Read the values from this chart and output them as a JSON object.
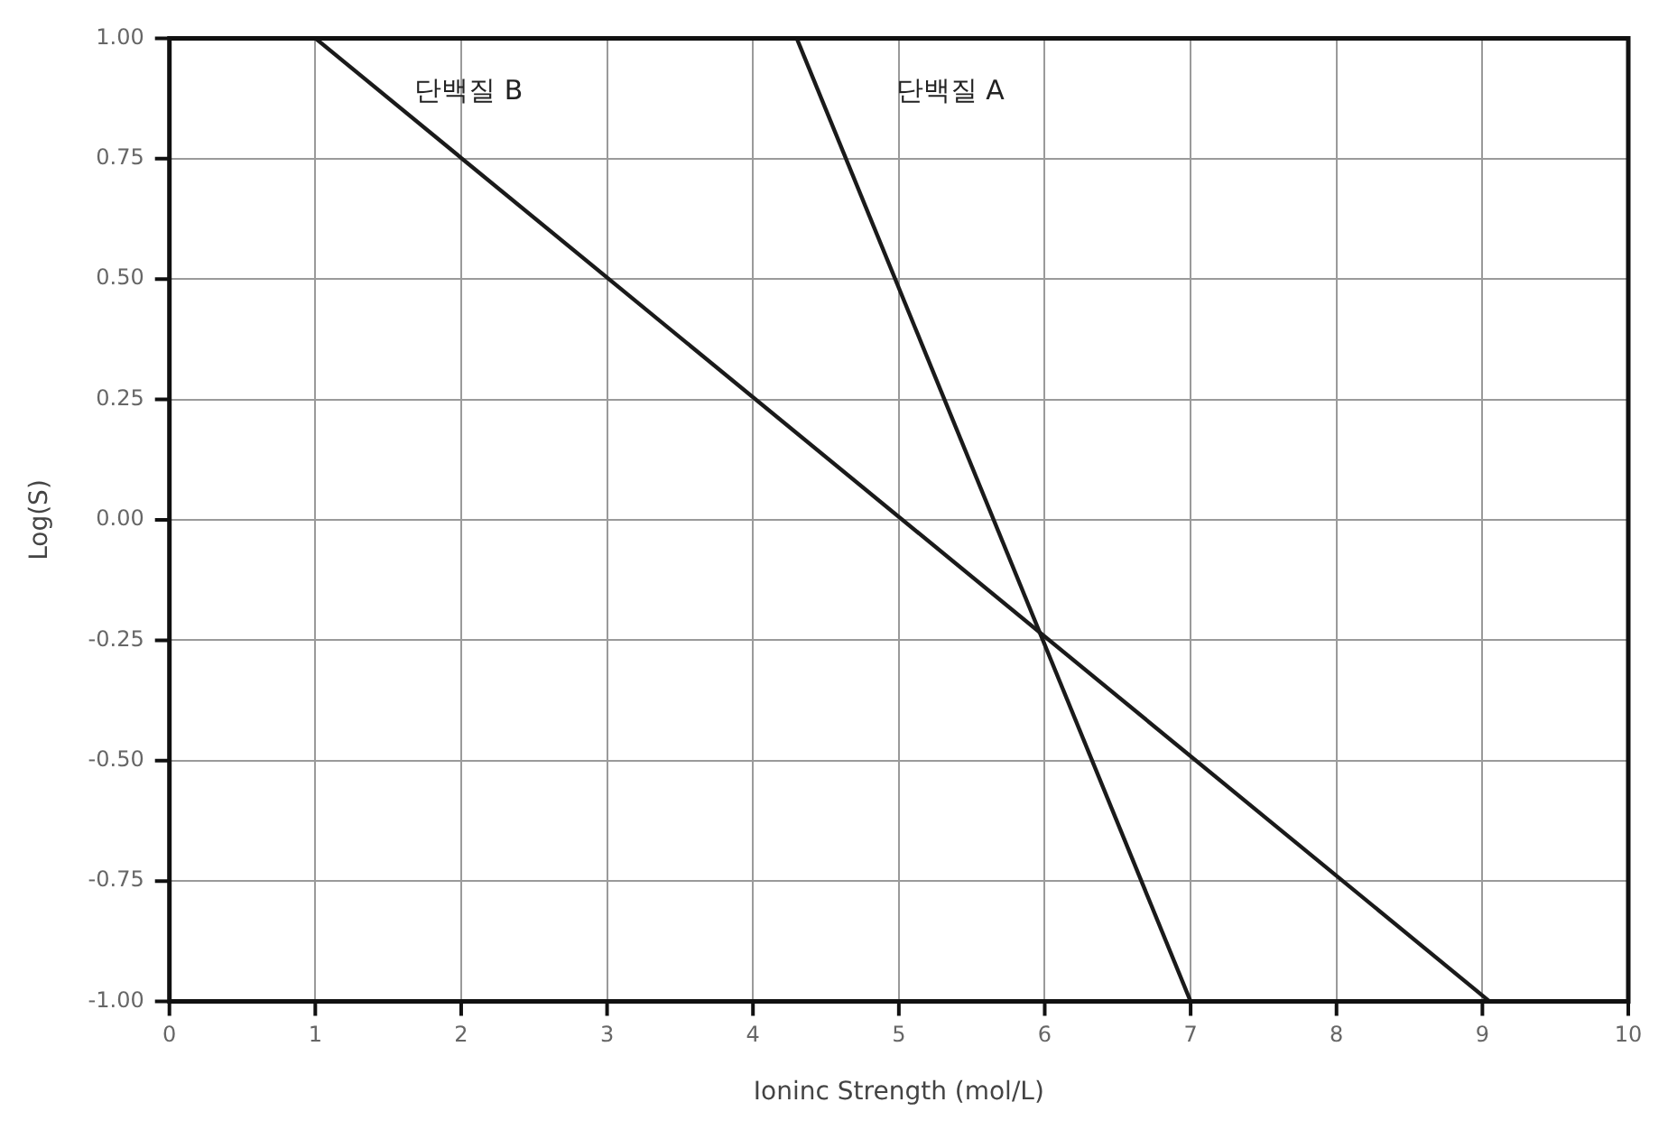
{
  "chart_data": {
    "type": "line",
    "xlabel": "Ioninc Strength (mol/L)",
    "ylabel": "Log(S)",
    "xlim": [
      0,
      10
    ],
    "xticks": [
      0,
      1,
      2,
      3,
      4,
      5,
      6,
      7,
      8,
      9,
      10
    ],
    "ylim": [
      -1,
      1
    ],
    "yticks": [
      {
        "value": -1,
        "label": "-1.00"
      },
      {
        "value": -0.75,
        "label": "-0.75"
      },
      {
        "value": -0.5,
        "label": "-0.50"
      },
      {
        "value": -0.25,
        "label": "-0.25"
      },
      {
        "value": 0,
        "label": "0.00"
      },
      {
        "value": 0.25,
        "label": "0.25"
      },
      {
        "value": 0.5,
        "label": "0.50"
      },
      {
        "value": 0.75,
        "label": "0.75"
      },
      {
        "value": 1,
        "label": "1.00"
      }
    ],
    "series": [
      {
        "name": "단백질 B",
        "color": "#1a1a1a",
        "x": [
          1,
          9.05
        ],
        "values": [
          1,
          -1
        ]
      },
      {
        "name": "단백질 A",
        "color": "#1a1a1a",
        "x": [
          4.3,
          7
        ],
        "values": [
          1,
          -1
        ]
      }
    ],
    "grid": true,
    "legend": false,
    "marker": "none",
    "line_style": "solid"
  }
}
